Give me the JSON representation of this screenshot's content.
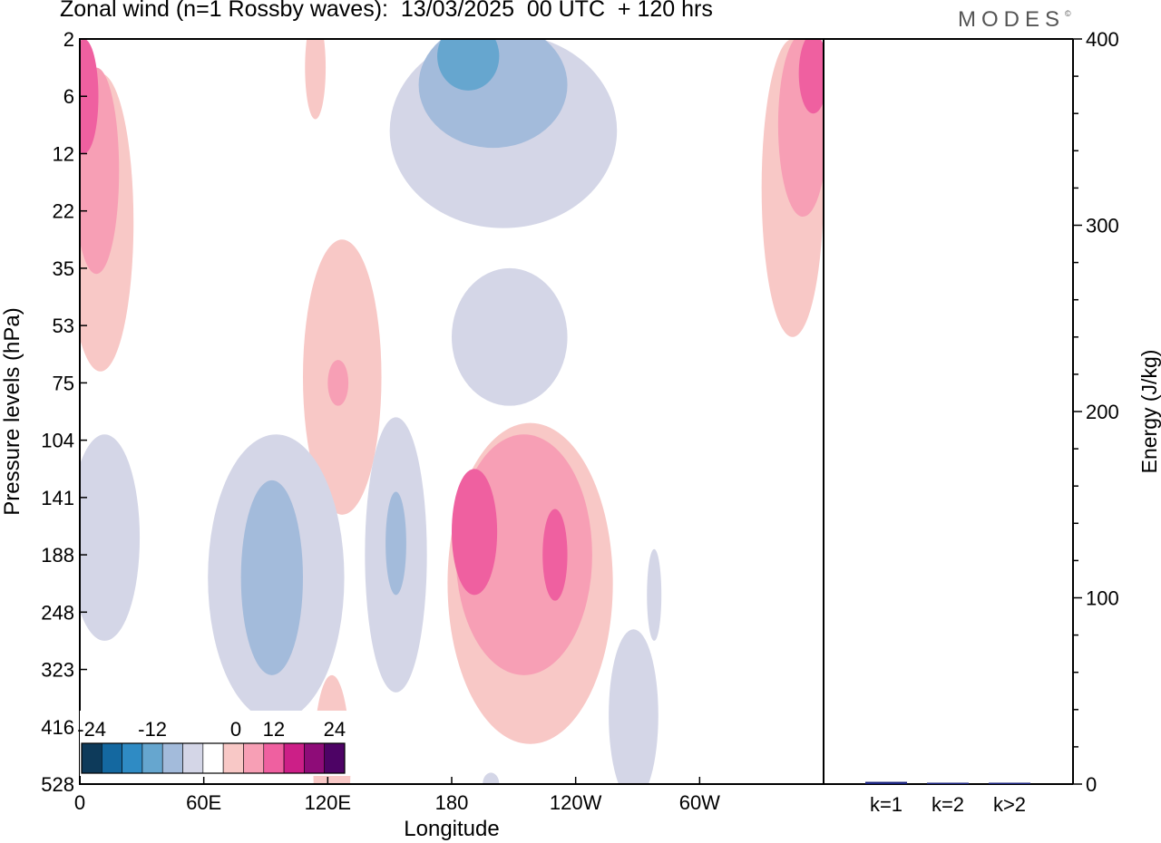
{
  "header": {
    "title": "Zonal wind (n=1 Rossby waves):  13/03/2025  00 UTC  + 120 hrs",
    "brand": "MODES",
    "brand_mark": "©"
  },
  "chart_data": [
    {
      "type": "heatmap",
      "title": "Zonal wind (n=1 Rossby waves):  13/03/2025  00 UTC  + 120 hrs",
      "xlabel": "Longitude",
      "ylabel": "Pressure levels (hPa)",
      "x_ticks": [
        "0",
        "60E",
        "120E",
        "180",
        "120W",
        "60W"
      ],
      "x_tick_degrees": [
        0,
        60,
        120,
        180,
        240,
        300
      ],
      "xlim": [
        0,
        360
      ],
      "y_ticks": [
        "2",
        "6",
        "12",
        "22",
        "35",
        "53",
        "75",
        "104",
        "141",
        "188",
        "248",
        "323",
        "416",
        "528"
      ],
      "y_scale": "model levels (non-linear)",
      "colorbar": {
        "placement": "bottom-left",
        "labels": [
          "-24",
          "-12",
          "0",
          "12",
          "24"
        ],
        "levels": [
          -28,
          -24,
          -20,
          -16,
          -12,
          -8,
          -4,
          4,
          8,
          12,
          16,
          20,
          24,
          28
        ],
        "colors": [
          "#0d3a5a",
          "#1468a0",
          "#2f8bc4",
          "#66a6cf",
          "#a3bbdb",
          "#d4d6e7",
          "#ffffff",
          "#f8c8c6",
          "#f79fb5",
          "#ef60a0",
          "#cc1f87",
          "#8e0c78",
          "#4d0365"
        ]
      },
      "contours": [
        {
          "level": 4,
          "color": "#f8c8c6",
          "lon": 10,
          "lev": 3.2,
          "dlon": 16,
          "dlev": 2.6
        },
        {
          "level": 8,
          "color": "#f79fb5",
          "lon": 8,
          "lev": 2.3,
          "dlon": 11,
          "dlev": 1.8
        },
        {
          "level": 12,
          "color": "#ef60a0",
          "lon": 2,
          "lev": 1.0,
          "dlon": 7,
          "dlev": 1.0
        },
        {
          "level": 4,
          "color": "#f8c8c6",
          "lon": 345,
          "lev": 2.6,
          "dlon": 15,
          "dlev": 2.6
        },
        {
          "level": 8,
          "color": "#f79fb5",
          "lon": 350,
          "lev": 1.5,
          "dlon": 12,
          "dlev": 1.6
        },
        {
          "level": 12,
          "color": "#ef60a0",
          "lon": 355,
          "lev": 0.6,
          "dlon": 7,
          "dlev": 0.7
        },
        {
          "level": 4,
          "color": "#f8c8c6",
          "lon": 114,
          "lev": 0.5,
          "dlon": 5,
          "dlev": 0.9
        },
        {
          "level": -4,
          "color": "#d4d6e7",
          "lon": 205,
          "lev": 1.6,
          "dlon": 55,
          "dlev": 1.7
        },
        {
          "level": -8,
          "color": "#a3bbdb",
          "lon": 200,
          "lev": 0.8,
          "dlon": 36,
          "dlev": 1.1
        },
        {
          "level": -12,
          "color": "#66a6cf",
          "lon": 188,
          "lev": 0.3,
          "dlon": 15,
          "dlev": 0.6
        },
        {
          "level": -4,
          "color": "#d4d6e7",
          "lon": 208,
          "lev": 5.2,
          "dlon": 28,
          "dlev": 1.2
        },
        {
          "level": 4,
          "color": "#f8c8c6",
          "lon": 127,
          "lev": 5.9,
          "dlon": 19,
          "dlev": 2.4
        },
        {
          "level": 8,
          "color": "#f79fb5",
          "lon": 125,
          "lev": 6.0,
          "dlon": 5,
          "dlev": 0.4
        },
        {
          "level": -4,
          "color": "#d4d6e7",
          "lon": 12,
          "lev": 8.7,
          "dlon": 17,
          "dlev": 1.8
        },
        {
          "level": -4,
          "color": "#d4d6e7",
          "lon": 95,
          "lev": 9.4,
          "dlon": 33,
          "dlev": 2.5
        },
        {
          "level": -8,
          "color": "#a3bbdb",
          "lon": 93,
          "lev": 9.4,
          "dlon": 15,
          "dlev": 1.7
        },
        {
          "level": -4,
          "color": "#d4d6e7",
          "lon": 153,
          "lev": 9.0,
          "dlon": 15,
          "dlev": 2.4
        },
        {
          "level": -8,
          "color": "#a3bbdb",
          "lon": 153,
          "lev": 8.8,
          "dlon": 5,
          "dlev": 0.9
        },
        {
          "level": 4,
          "color": "#f8c8c6",
          "lon": 218,
          "lev": 9.5,
          "dlon": 40,
          "dlev": 2.8
        },
        {
          "level": 8,
          "color": "#f79fb5",
          "lon": 215,
          "lev": 9.0,
          "dlon": 33,
          "dlev": 2.1
        },
        {
          "level": 12,
          "color": "#ef60a0",
          "lon": 191,
          "lev": 8.6,
          "dlon": 11,
          "dlev": 1.1
        },
        {
          "level": 12,
          "color": "#ef60a0",
          "lon": 230,
          "lev": 9.0,
          "dlon": 6,
          "dlev": 0.8
        },
        {
          "level": -4,
          "color": "#d4d6e7",
          "lon": 278,
          "lev": 9.7,
          "dlon": 3.5,
          "dlev": 0.8
        },
        {
          "level": -4,
          "color": "#d4d6e7",
          "lon": 268,
          "lev": 11.8,
          "dlon": 12,
          "dlev": 1.5
        },
        {
          "level": 4,
          "color": "#f8c8c6",
          "lon": 122,
          "lev": 12.7,
          "dlon": 9,
          "dlev": 1.6
        },
        {
          "level": -4,
          "color": "#d4d6e7",
          "lon": 199,
          "lev": 13.0,
          "dlon": 4,
          "dlev": 0.2
        }
      ]
    },
    {
      "type": "bar",
      "ylabel": "Energy (J/kg)",
      "categories": [
        "k=1",
        "k=2",
        "k>2"
      ],
      "values": [
        1.2,
        0.5,
        0.5
      ],
      "ylim": [
        0,
        400
      ],
      "y_ticks": [
        "0",
        "100",
        "200",
        "300",
        "400"
      ],
      "y_minor_step": 20,
      "bar_color": "#1a237e"
    }
  ]
}
